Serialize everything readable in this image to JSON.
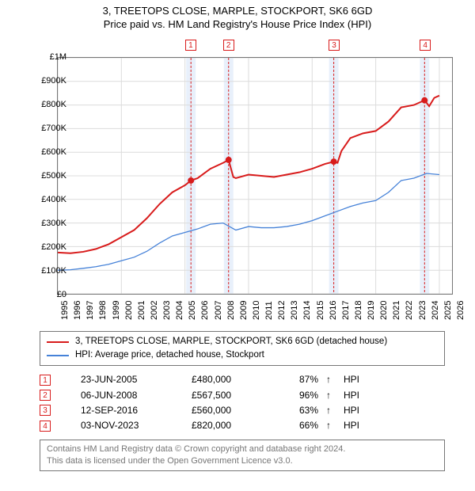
{
  "title_line1": "3, TREETOPS CLOSE, MARPLE, STOCKPORT, SK6 6GD",
  "title_line2": "Price paid vs. HM Land Registry's House Price Index (HPI)",
  "chart": {
    "type": "line",
    "background_color": "#ffffff",
    "border_color": "#767676",
    "grid_color": "#dcdcdc",
    "xlim": [
      1995,
      2026
    ],
    "ylim": [
      0,
      1000000
    ],
    "ytick_step": 100000,
    "yticks": [
      "£0",
      "£100K",
      "£200K",
      "£300K",
      "£400K",
      "£500K",
      "£600K",
      "£700K",
      "£800K",
      "£900K",
      "£1M"
    ],
    "xticks": [
      1995,
      1996,
      1997,
      1998,
      1999,
      2000,
      2001,
      2002,
      2003,
      2004,
      2005,
      2006,
      2007,
      2008,
      2009,
      2010,
      2011,
      2012,
      2013,
      2014,
      2015,
      2016,
      2017,
      2018,
      2019,
      2020,
      2021,
      2022,
      2023,
      2024,
      2025,
      2026
    ],
    "tick_fontsize": 11,
    "series": [
      {
        "name": "property",
        "label": "3, TREETOPS CLOSE, MARPLE, STOCKPORT, SK6 6GD (detached house)",
        "color": "#d81b1b",
        "width": 2,
        "data": [
          [
            1995,
            175000
          ],
          [
            1996,
            172000
          ],
          [
            1997,
            178000
          ],
          [
            1998,
            190000
          ],
          [
            1999,
            210000
          ],
          [
            2000,
            240000
          ],
          [
            2001,
            270000
          ],
          [
            2002,
            320000
          ],
          [
            2003,
            380000
          ],
          [
            2004,
            430000
          ],
          [
            2005,
            460000
          ],
          [
            2005.47,
            480000
          ],
          [
            2006,
            490000
          ],
          [
            2007,
            530000
          ],
          [
            2008,
            555000
          ],
          [
            2008.43,
            567500
          ],
          [
            2008.8,
            495000
          ],
          [
            2009,
            490000
          ],
          [
            2010,
            505000
          ],
          [
            2011,
            500000
          ],
          [
            2012,
            495000
          ],
          [
            2013,
            505000
          ],
          [
            2014,
            515000
          ],
          [
            2015,
            530000
          ],
          [
            2016,
            550000
          ],
          [
            2016.7,
            560000
          ],
          [
            2017,
            555000
          ],
          [
            2017.3,
            605000
          ],
          [
            2018,
            660000
          ],
          [
            2019,
            680000
          ],
          [
            2020,
            690000
          ],
          [
            2021,
            730000
          ],
          [
            2022,
            790000
          ],
          [
            2023,
            800000
          ],
          [
            2023.84,
            820000
          ],
          [
            2024.2,
            795000
          ],
          [
            2024.6,
            830000
          ],
          [
            2025,
            840000
          ]
        ]
      },
      {
        "name": "hpi",
        "label": "HPI: Average price, detached house, Stockport",
        "color": "#4682d8",
        "width": 1.3,
        "data": [
          [
            1995,
            100000
          ],
          [
            1996,
            102000
          ],
          [
            1997,
            108000
          ],
          [
            1998,
            115000
          ],
          [
            1999,
            125000
          ],
          [
            2000,
            140000
          ],
          [
            2001,
            155000
          ],
          [
            2002,
            180000
          ],
          [
            2003,
            215000
          ],
          [
            2004,
            245000
          ],
          [
            2005,
            260000
          ],
          [
            2006,
            275000
          ],
          [
            2007,
            295000
          ],
          [
            2008,
            300000
          ],
          [
            2009,
            270000
          ],
          [
            2010,
            285000
          ],
          [
            2011,
            280000
          ],
          [
            2012,
            280000
          ],
          [
            2013,
            285000
          ],
          [
            2014,
            295000
          ],
          [
            2015,
            310000
          ],
          [
            2016,
            330000
          ],
          [
            2017,
            350000
          ],
          [
            2018,
            370000
          ],
          [
            2019,
            385000
          ],
          [
            2020,
            395000
          ],
          [
            2021,
            430000
          ],
          [
            2022,
            480000
          ],
          [
            2023,
            490000
          ],
          [
            2024,
            510000
          ],
          [
            2025,
            505000
          ]
        ]
      }
    ],
    "sale_markers": [
      {
        "n": "1",
        "year": 2005.47,
        "price": 480000
      },
      {
        "n": "2",
        "year": 2008.43,
        "price": 567500
      },
      {
        "n": "3",
        "year": 2016.7,
        "price": 560000
      },
      {
        "n": "4",
        "year": 2023.84,
        "price": 820000
      }
    ],
    "band_color": "#e8f0fb",
    "dash_color": "#d81b1b"
  },
  "legend": {
    "series1_label": "3, TREETOPS CLOSE, MARPLE, STOCKPORT, SK6 6GD (detached house)",
    "series2_label": "HPI: Average price, detached house, Stockport"
  },
  "sales_table": {
    "hpi_label": "HPI",
    "rows": [
      {
        "n": "1",
        "date": "23-JUN-2005",
        "price": "£480,000",
        "pct": "87%",
        "arrow": "↑"
      },
      {
        "n": "2",
        "date": "06-JUN-2008",
        "price": "£567,500",
        "pct": "96%",
        "arrow": "↑"
      },
      {
        "n": "3",
        "date": "12-SEP-2016",
        "price": "£560,000",
        "pct": "63%",
        "arrow": "↑"
      },
      {
        "n": "4",
        "date": "03-NOV-2023",
        "price": "£820,000",
        "pct": "66%",
        "arrow": "↑"
      }
    ]
  },
  "footer": {
    "line1": "Contains HM Land Registry data © Crown copyright and database right 2024.",
    "line2": "This data is licensed under the Open Government Licence v3.0."
  }
}
